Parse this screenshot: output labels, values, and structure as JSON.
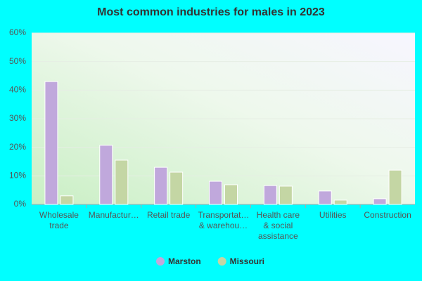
{
  "chart_data": {
    "type": "bar",
    "title": "Most common industries for males in 2023",
    "categories": [
      "Wholesale trade",
      "Manufactur…",
      "Retail trade",
      "Transportat… & warehou…",
      "Health care & social assistance",
      "Utilities",
      "Construction"
    ],
    "series": [
      {
        "name": "Marston",
        "color": "#c0a8dc",
        "values": [
          43.0,
          20.7,
          13.0,
          8.1,
          6.6,
          4.7,
          2.0
        ]
      },
      {
        "name": "Missouri",
        "color": "#c4d6a4",
        "values": [
          3.0,
          15.5,
          11.3,
          6.9,
          6.4,
          1.5,
          12.0
        ]
      }
    ],
    "ylim": [
      0,
      60
    ],
    "yticks": [
      {
        "value": 0,
        "label": "0%"
      },
      {
        "value": 10,
        "label": "10%"
      },
      {
        "value": 20,
        "label": "20%"
      },
      {
        "value": 30,
        "label": "30%"
      },
      {
        "value": 40,
        "label": "40%"
      },
      {
        "value": 50,
        "label": "50%"
      },
      {
        "value": 60,
        "label": "60%"
      }
    ],
    "grid": true,
    "legend": "bottom"
  }
}
